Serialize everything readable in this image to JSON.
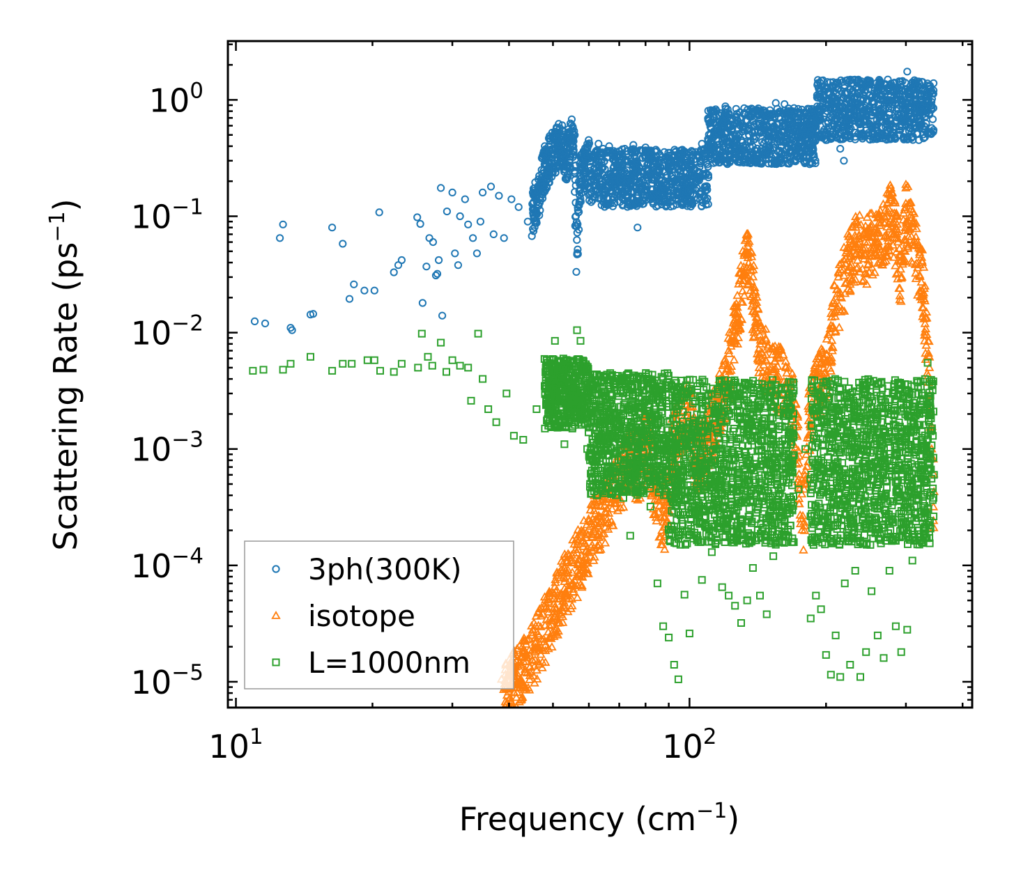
{
  "chart_data": {
    "type": "scatter",
    "title": "",
    "xlabel": "Frequency (cm",
    "xlabel_sup": "−1",
    "xlabel_end": ")",
    "ylabel": "Scattering Rate (ps",
    "ylabel_sup": "−1",
    "ylabel_end": ")",
    "xscale": "log",
    "yscale": "log",
    "xlim": [
      9.6,
      420
    ],
    "ylim": [
      6e-06,
      3.2
    ],
    "x_ticks": [
      {
        "base": "10",
        "exp": "1",
        "value": 10
      },
      {
        "base": "10",
        "exp": "2",
        "value": 100
      }
    ],
    "y_ticks": [
      {
        "base": "10",
        "exp": "0",
        "value": 1
      },
      {
        "base": "10",
        "exp": "−1",
        "value": 0.1
      },
      {
        "base": "10",
        "exp": "−2",
        "value": 0.01
      },
      {
        "base": "10",
        "exp": "−3",
        "value": 0.001
      },
      {
        "base": "10",
        "exp": "−4",
        "value": 0.0001
      },
      {
        "base": "10",
        "exp": "−5",
        "value": 1e-05
      }
    ],
    "legend_position": "lower-left",
    "series": [
      {
        "name": "3ph(300K)",
        "marker": "circle",
        "color": "#1f77b4",
        "points": [
          [
            11.0,
            0.0125
          ],
          [
            11.6,
            0.012
          ],
          [
            12.5,
            0.065
          ],
          [
            12.7,
            0.085
          ],
          [
            13.2,
            0.011
          ],
          [
            13.3,
            0.0105
          ],
          [
            14.6,
            0.0143
          ],
          [
            14.8,
            0.0145
          ],
          [
            16.3,
            0.08
          ],
          [
            17.2,
            0.058
          ],
          [
            17.8,
            0.0195
          ],
          [
            18.2,
            0.026
          ],
          [
            19.2,
            0.023
          ],
          [
            20.2,
            0.023
          ],
          [
            20.7,
            0.108
          ],
          [
            22.3,
            0.033
          ],
          [
            22.8,
            0.038
          ],
          [
            23.2,
            0.042
          ],
          [
            25.1,
            0.098
          ],
          [
            25.5,
            0.086
          ],
          [
            25.8,
            0.018
          ],
          [
            26.3,
            0.037
          ],
          [
            26.7,
            0.065
          ],
          [
            27.2,
            0.06
          ],
          [
            27.6,
            0.031
          ],
          [
            27.8,
            0.032
          ],
          [
            28.0,
            0.042
          ],
          [
            28.3,
            0.175
          ],
          [
            28.5,
            0.014
          ],
          [
            29.2,
            0.11
          ],
          [
            30.0,
            0.16
          ],
          [
            30.4,
            0.048
          ],
          [
            30.9,
            0.038
          ],
          [
            31.2,
            0.1
          ],
          [
            32.0,
            0.14
          ],
          [
            32.5,
            0.085
          ],
          [
            33.3,
            0.065
          ],
          [
            34.0,
            0.048
          ],
          [
            34.6,
            0.09
          ],
          [
            35.0,
            0.16
          ],
          [
            36.5,
            0.18
          ],
          [
            37.0,
            0.07
          ],
          [
            38.0,
            0.15
          ],
          [
            39.0,
            0.065
          ],
          [
            40.5,
            0.14
          ],
          [
            42.0,
            0.12
          ],
          [
            44.0,
            0.09
          ],
          [
            46.5,
            0.18
          ],
          [
            48.0,
            0.3
          ],
          [
            50.5,
            0.42
          ],
          [
            52.0,
            0.48
          ],
          [
            53.5,
            0.35
          ],
          [
            55.2,
            0.53
          ],
          [
            55.7,
            0.5
          ],
          [
            56.5,
            0.047
          ],
          [
            57.5,
            0.25
          ],
          [
            59.0,
            0.3
          ],
          [
            63.0,
            0.42
          ],
          [
            64.5,
            0.38
          ],
          [
            66.5,
            0.4
          ],
          [
            70.5,
            0.2
          ],
          [
            72.0,
            0.38
          ],
          [
            75.2,
            0.41
          ],
          [
            76.8,
            0.08
          ],
          [
            80.0,
            0.39
          ],
          [
            86.0,
            0.25
          ],
          [
            91.0,
            0.3
          ],
          [
            96.0,
            0.37
          ],
          [
            101.0,
            0.24
          ],
          [
            106.5,
            0.42
          ],
          [
            110.0,
            0.4
          ],
          [
            114.0,
            0.52
          ],
          [
            117.5,
            0.62
          ],
          [
            120.0,
            0.88
          ],
          [
            127.0,
            0.72
          ],
          [
            133.0,
            0.58
          ],
          [
            141.0,
            0.82
          ],
          [
            147.0,
            0.78
          ],
          [
            155.0,
            0.94
          ],
          [
            162.0,
            0.92
          ],
          [
            170.0,
            0.85
          ],
          [
            178.0,
            0.72
          ],
          [
            188.0,
            0.78
          ],
          [
            194.0,
            0.88
          ],
          [
            200.0,
            0.52
          ],
          [
            207.0,
            0.48
          ],
          [
            215.0,
            0.38
          ],
          [
            219.0,
            0.3
          ],
          [
            226.0,
            0.74
          ],
          [
            232.0,
            0.95
          ],
          [
            238.0,
            0.85
          ],
          [
            245.0,
            0.68
          ],
          [
            255.0,
            0.48
          ],
          [
            262.0,
            0.8
          ],
          [
            272.0,
            0.98
          ],
          [
            282.0,
            1.2
          ],
          [
            295.0,
            1.45
          ],
          [
            302.0,
            1.75
          ],
          [
            310.0,
            1.4
          ],
          [
            322.0,
            1.12
          ],
          [
            335.0,
            1.0
          ],
          [
            345.0,
            0.85
          ]
        ]
      },
      {
        "name": "isotope",
        "marker": "triangle",
        "color": "#ff7f0e",
        "points": [
          [
            38.5,
            1.05e-05
          ],
          [
            40.0,
            1.2e-05
          ],
          [
            41.5,
            1.5e-05
          ],
          [
            43.0,
            1.8e-05
          ],
          [
            45.0,
            2.5e-05
          ],
          [
            47.5,
            3.8e-05
          ],
          [
            50.0,
            5.8e-05
          ],
          [
            53.0,
            9.5e-05
          ],
          [
            56.5,
            0.00015
          ],
          [
            60.0,
            0.00024
          ],
          [
            63.0,
            0.00036
          ],
          [
            66.5,
            0.0005
          ],
          [
            70.5,
            0.0008
          ],
          [
            74.0,
            0.0012
          ],
          [
            77.5,
            0.001
          ],
          [
            80.0,
            0.0018
          ],
          [
            84.0,
            0.0007
          ],
          [
            88.0,
            0.0003
          ],
          [
            92.0,
            0.0015
          ],
          [
            96.0,
            0.0024
          ],
          [
            98.5,
            0.0028
          ],
          [
            101.0,
            0.003
          ],
          [
            103.5,
            0.0012
          ],
          [
            106.0,
            0.0012
          ],
          [
            112.0,
            0.0022
          ],
          [
            118.0,
            0.0042
          ],
          [
            122.0,
            0.007
          ],
          [
            126.0,
            0.015
          ],
          [
            129.0,
            0.028
          ],
          [
            132.0,
            0.046
          ],
          [
            134.0,
            0.068
          ],
          [
            136.5,
            0.05
          ],
          [
            139.0,
            0.023
          ],
          [
            143.0,
            0.012
          ],
          [
            149.0,
            0.0075
          ],
          [
            157.0,
            0.006
          ],
          [
            163.0,
            0.005
          ],
          [
            168.0,
            0.004
          ],
          [
            172.5,
            0.002
          ],
          [
            176.0,
            0.00025
          ],
          [
            180.0,
            0.00055
          ],
          [
            184.0,
            0.0031
          ],
          [
            189.0,
            0.0052
          ],
          [
            195.0,
            0.0055
          ],
          [
            201.0,
            0.0065
          ],
          [
            207.0,
            0.018
          ],
          [
            213.0,
            0.03
          ],
          [
            219.0,
            0.042
          ],
          [
            226.0,
            0.063
          ],
          [
            234.0,
            0.088
          ],
          [
            243.0,
            0.07
          ],
          [
            252.0,
            0.085
          ],
          [
            262.0,
            0.1
          ],
          [
            270.0,
            0.112
          ],
          [
            278.0,
            0.15
          ],
          [
            285.0,
            0.1
          ],
          [
            293.0,
            0.042
          ],
          [
            300.0,
            0.175
          ],
          [
            306.0,
            0.13
          ],
          [
            312.0,
            0.09
          ],
          [
            318.0,
            0.06
          ],
          [
            326.0,
            0.04
          ],
          [
            333.0,
            0.015
          ],
          [
            338.0,
            0.005
          ],
          [
            342.0,
            0.001
          ],
          [
            346.0,
            0.00043
          ]
        ]
      },
      {
        "name": "L=1000nm",
        "marker": "square",
        "color": "#2ca02c",
        "points": [
          [
            10.9,
            0.0047
          ],
          [
            11.5,
            0.0048
          ],
          [
            12.7,
            0.0048
          ],
          [
            13.2,
            0.0054
          ],
          [
            14.6,
            0.0062
          ],
          [
            16.3,
            0.0047
          ],
          [
            17.2,
            0.0054
          ],
          [
            18.0,
            0.0054
          ],
          [
            19.5,
            0.0058
          ],
          [
            20.2,
            0.0058
          ],
          [
            20.8,
            0.0047
          ],
          [
            22.3,
            0.0046
          ],
          [
            23.2,
            0.0054
          ],
          [
            25.2,
            0.005
          ],
          [
            25.7,
            0.0098
          ],
          [
            26.5,
            0.0062
          ],
          [
            27.1,
            0.0052
          ],
          [
            28.3,
            0.0082
          ],
          [
            29.1,
            0.0046
          ],
          [
            30.0,
            0.0058
          ],
          [
            31.2,
            0.0052
          ],
          [
            32.5,
            0.005
          ],
          [
            33.0,
            0.0026
          ],
          [
            34.2,
            0.0098
          ],
          [
            35.0,
            0.004
          ],
          [
            36.0,
            0.0022
          ],
          [
            37.5,
            0.0017
          ],
          [
            39.5,
            0.003
          ],
          [
            41.0,
            0.0013
          ],
          [
            43.0,
            0.0012
          ],
          [
            46.0,
            0.0022
          ],
          [
            48.0,
            0.0015
          ],
          [
            50.5,
            0.0085
          ],
          [
            53.0,
            0.0011
          ],
          [
            56.5,
            0.0105
          ],
          [
            57.5,
            0.0085
          ],
          [
            59.5,
            0.001
          ],
          [
            62.0,
            0.00058
          ],
          [
            64.5,
            0.0009
          ],
          [
            66.5,
            0.0007
          ],
          [
            68.5,
            0.0008
          ],
          [
            71.5,
            0.00038
          ],
          [
            74.0,
            0.00018
          ],
          [
            76.5,
            0.0005
          ],
          [
            79.0,
            0.0012
          ],
          [
            82.0,
            0.00032
          ],
          [
            85.0,
            7e-05
          ],
          [
            87.5,
            3e-05
          ],
          [
            90.0,
            2.4e-05
          ],
          [
            92.5,
            1.4e-05
          ],
          [
            94.5,
            1.05e-05
          ],
          [
            97.5,
            5.6e-05
          ],
          [
            100.0,
            2.6e-05
          ],
          [
            102.0,
            0.00017
          ],
          [
            106.5,
            7.5e-05
          ],
          [
            112.0,
            0.00013
          ],
          [
            118.0,
            6.5e-05
          ],
          [
            122.0,
            5.5e-05
          ],
          [
            126.0,
            4.5e-05
          ],
          [
            130.0,
            3.2e-05
          ],
          [
            134.0,
            5e-05
          ],
          [
            138.0,
            9.5e-05
          ],
          [
            143.0,
            5.5e-05
          ],
          [
            148.0,
            3.8e-05
          ],
          [
            153.0,
            0.00012
          ],
          [
            160.0,
            0.00022
          ],
          [
            167.0,
            0.00022
          ],
          [
            174.0,
            0.00045
          ],
          [
            180.0,
            0.001
          ],
          [
            185.0,
            3.5e-05
          ],
          [
            190.0,
            5.5e-05
          ],
          [
            195.0,
            4.2e-05
          ],
          [
            200.0,
            1.7e-05
          ],
          [
            205.0,
            1.15e-05
          ],
          [
            210.0,
            2.5e-05
          ],
          [
            215.0,
            1.1e-05
          ],
          [
            220.0,
            7e-05
          ],
          [
            226.0,
            1.4e-05
          ],
          [
            232.0,
            9e-05
          ],
          [
            238.0,
            1.1e-05
          ],
          [
            245.0,
            1.8e-05
          ],
          [
            252.0,
            6e-05
          ],
          [
            260.0,
            2.5e-05
          ],
          [
            268.0,
            1.6e-05
          ],
          [
            276.0,
            9e-05
          ],
          [
            285.0,
            3e-05
          ],
          [
            293.0,
            1.8e-05
          ],
          [
            302.0,
            2.8e-05
          ],
          [
            310.0,
            0.00011
          ],
          [
            320.0,
            0.0004
          ],
          [
            328.0,
            0.001
          ],
          [
            335.0,
            0.0055
          ],
          [
            340.0,
            0.0022
          ],
          [
            346.0,
            0.0006
          ]
        ]
      }
    ]
  }
}
